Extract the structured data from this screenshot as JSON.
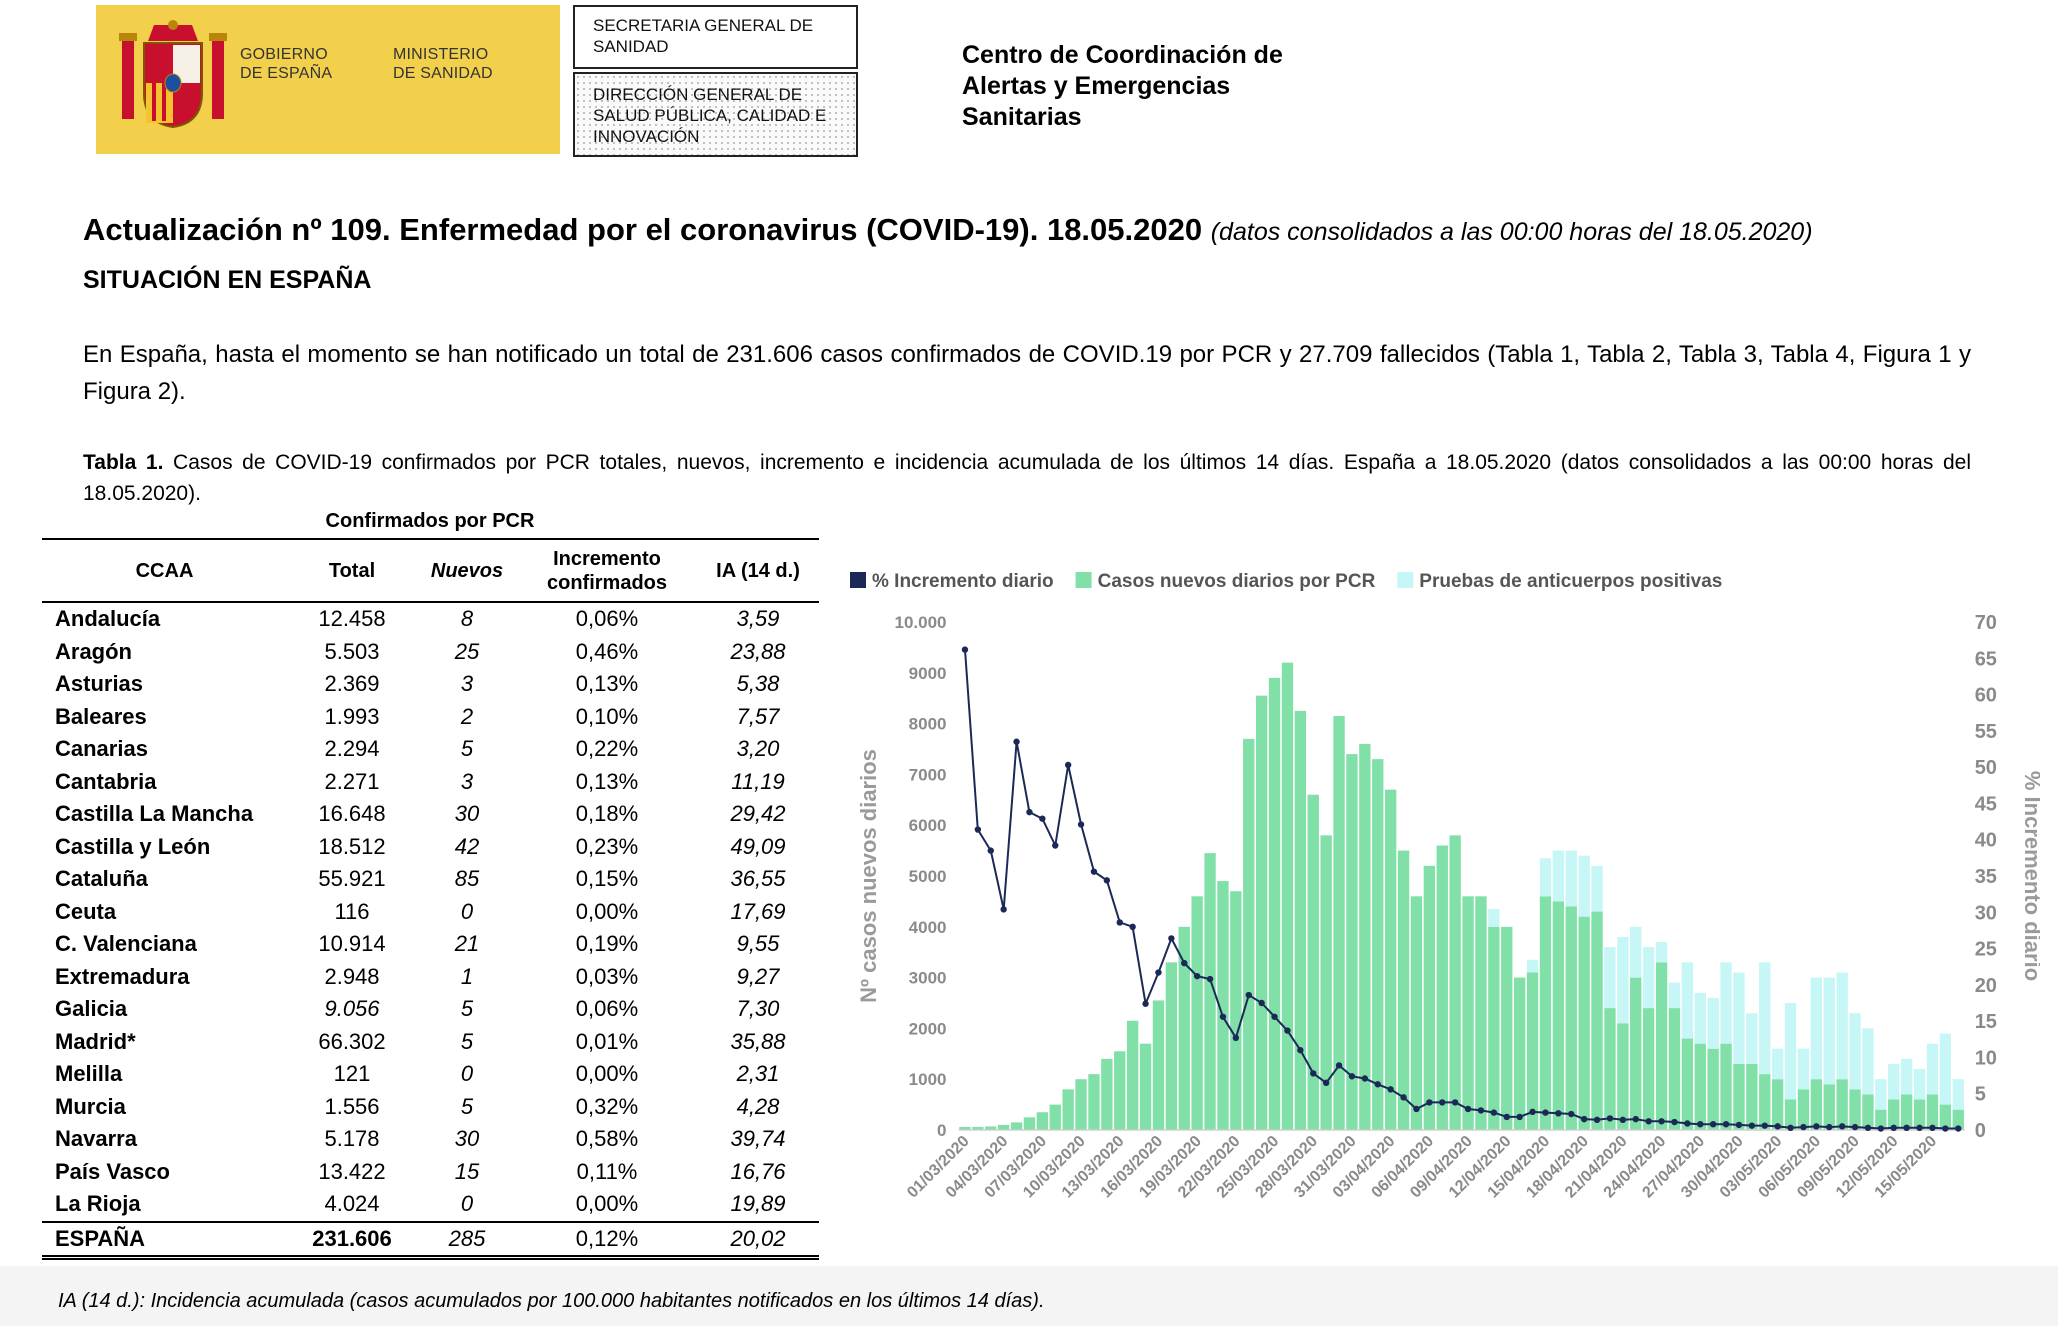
{
  "header": {
    "logo_left": "GOBIERNO DE ESPAÑA",
    "logo_right": "MINISTERIO DE SANIDAD",
    "box_top": "SECRETARIA GENERAL DE SANIDAD",
    "box_bottom": "DIRECCIÓN GENERAL DE SALUD PÚBLICA, CALIDAD E INNOVACIÓN",
    "center": "Centro de Coordinación de Alertas y Emergencias Sanitarias"
  },
  "title": {
    "main": "Actualización nº 109. Enfermedad por el coronavirus (COVID-19). 18.05.2020",
    "note": "(datos consolidados a las 00:00 horas del 18.05.2020)"
  },
  "section": "SITUACIÓN EN ESPAÑA",
  "paragraph": "En España, hasta el momento se han notificado un total de 231.606 casos confirmados de COVID.19 por PCR y 27.709 fallecidos (Tabla 1, Tabla 2, Tabla 3, Tabla 4, Figura 1 y Figura 2).",
  "table": {
    "caption_label": "Tabla 1.",
    "caption": "Casos de COVID-19 confirmados por PCR totales, nuevos, incremento e incidencia acumulada de los últimos 14 días. España a 18.05.2020 (datos consolidados a las 00:00 horas del 18.05.2020).",
    "group_header": "Confirmados por PCR",
    "header": [
      "CCAA",
      "Total",
      "Nuevos",
      "Incremento confirmados",
      "IA (14 d.)"
    ],
    "rows": [
      [
        "Andalucía",
        "12.458",
        "8",
        "0,06%",
        "3,59"
      ],
      [
        "Aragón",
        "5.503",
        "25",
        "0,46%",
        "23,88"
      ],
      [
        "Asturias",
        "2.369",
        "3",
        "0,13%",
        "5,38"
      ],
      [
        "Baleares",
        "1.993",
        "2",
        "0,10%",
        "7,57"
      ],
      [
        "Canarias",
        "2.294",
        "5",
        "0,22%",
        "3,20"
      ],
      [
        "Cantabria",
        "2.271",
        "3",
        "0,13%",
        "11,19"
      ],
      [
        "Castilla La Mancha",
        "16.648",
        "30",
        "0,18%",
        "29,42"
      ],
      [
        "Castilla y León",
        "18.512",
        "42",
        "0,23%",
        "49,09"
      ],
      [
        "Cataluña",
        "55.921",
        "85",
        "0,15%",
        "36,55"
      ],
      [
        "Ceuta",
        "116",
        "0",
        "0,00%",
        "17,69"
      ],
      [
        "C. Valenciana",
        "10.914",
        "21",
        "0,19%",
        "9,55"
      ],
      [
        "Extremadura",
        "2.948",
        "1",
        "0,03%",
        "9,27"
      ],
      [
        "Galicia",
        "9.056",
        "5",
        "0,06%",
        "7,30"
      ],
      [
        "Madrid*",
        "66.302",
        "5",
        "0,01%",
        "35,88"
      ],
      [
        "Melilla",
        "121",
        "0",
        "0,00%",
        "2,31"
      ],
      [
        "Murcia",
        "1.556",
        "5",
        "0,32%",
        "4,28"
      ],
      [
        "Navarra",
        "5.178",
        "30",
        "0,58%",
        "39,74"
      ],
      [
        "País Vasco",
        "13.422",
        "15",
        "0,11%",
        "16,76"
      ],
      [
        "La Rioja",
        "4.024",
        "0",
        "0,00%",
        "19,89"
      ]
    ],
    "total": [
      "ESPAÑA",
      "231.606",
      "285",
      "0,12%",
      "20,02"
    ]
  },
  "chart_data": {
    "type": "bar",
    "stacked": true,
    "ylabel": "Nº casos nuevos diarios",
    "y2label": "% Incremento diario",
    "categories": [
      "01/03/2020",
      null,
      null,
      "04/03/2020",
      null,
      null,
      "07/03/2020",
      null,
      null,
      "10/03/2020",
      null,
      null,
      "13/03/2020",
      null,
      null,
      "16/03/2020",
      null,
      null,
      "19/03/2020",
      null,
      null,
      "22/03/2020",
      null,
      null,
      "25/03/2020",
      null,
      null,
      "28/03/2020",
      null,
      null,
      "31/03/2020",
      null,
      null,
      "03/04/2020",
      null,
      null,
      "06/04/2020",
      null,
      null,
      "09/04/2020",
      null,
      null,
      "12/04/2020",
      null,
      null,
      "15/04/2020",
      null,
      null,
      "18/04/2020",
      null,
      null,
      "21/04/2020",
      null,
      null,
      "24/04/2020",
      null,
      null,
      "27/04/2020",
      null,
      null,
      "30/04/2020",
      null,
      null,
      "03/05/2020",
      null,
      null,
      "06/05/2020",
      null,
      null,
      "09/05/2020",
      null,
      null,
      "12/05/2020",
      null,
      null,
      "15/05/2020",
      null,
      null
    ],
    "series": [
      {
        "name": "% Incremento diario",
        "color": "#1c2957",
        "type": "line",
        "axis": "y2",
        "values": [
          66.2,
          41.4,
          38.5,
          30.4,
          53.5,
          43.8,
          42.9,
          39.2,
          50.3,
          42.1,
          35.6,
          34.4,
          28.6,
          28.0,
          17.4,
          21.7,
          26.4,
          23.0,
          21.2,
          20.8,
          15.6,
          12.7,
          18.6,
          17.5,
          15.6,
          13.7,
          11.0,
          7.8,
          6.5,
          8.9,
          7.4,
          7.1,
          6.3,
          5.6,
          4.5,
          2.9,
          3.8,
          3.8,
          3.8,
          2.9,
          2.7,
          2.4,
          1.8,
          1.8,
          2.5,
          2.4,
          2.3,
          2.2,
          1.5,
          1.4,
          1.6,
          1.4,
          1.5,
          1.2,
          1.2,
          1.1,
          0.9,
          0.8,
          0.8,
          0.8,
          0.7,
          0.6,
          0.6,
          0.5,
          0.3,
          0.4,
          0.5,
          0.4,
          0.5,
          0.4,
          0.3,
          0.2,
          0.3,
          0.3,
          0.3,
          0.3,
          0.2,
          0.2
        ]
      },
      {
        "name": "Casos nuevos diarios por PCR",
        "color": "#80e0a8",
        "values": [
          60,
          60,
          70,
          100,
          150,
          250,
          350,
          500,
          800,
          1000,
          1100,
          1400,
          1550,
          2150,
          1700,
          2550,
          3300,
          4000,
          4600,
          5450,
          4900,
          4700,
          7700,
          8550,
          8900,
          9200,
          8250,
          6600,
          5800,
          8150,
          7400,
          7600,
          7300,
          6700,
          5500,
          4600,
          5200,
          5600,
          5800,
          4600,
          4600,
          4000,
          4000,
          3000,
          3100,
          4600,
          4500,
          4400,
          4200,
          4300,
          2400,
          2100,
          3000,
          2400,
          3300,
          2400,
          1800,
          1700,
          1600,
          1700,
          1300,
          1300,
          1100,
          1000,
          600,
          800,
          1000,
          900,
          1000,
          800,
          700,
          400,
          600,
          700,
          600,
          700,
          500,
          400
        ]
      },
      {
        "name": "Pruebas de anticuerpos positivas",
        "color": "#c6f6f5",
        "values": [
          0,
          0,
          0,
          0,
          0,
          0,
          0,
          0,
          0,
          0,
          0,
          0,
          0,
          0,
          0,
          0,
          0,
          0,
          0,
          0,
          0,
          0,
          0,
          0,
          0,
          0,
          0,
          0,
          0,
          0,
          0,
          0,
          0,
          0,
          0,
          0,
          0,
          0,
          0,
          0,
          0,
          350,
          0,
          0,
          250,
          750,
          1000,
          1100,
          1200,
          900,
          1200,
          1700,
          1000,
          1200,
          400,
          500,
          1500,
          1000,
          1000,
          1600,
          1800,
          1000,
          2200,
          600,
          1900,
          800,
          2000,
          2100,
          2100,
          1500,
          1300,
          600,
          700,
          700,
          600,
          1000,
          1400,
          600
        ]
      }
    ],
    "ylim": [
      0,
      10000
    ],
    "yticks": [
      0,
      1000,
      2000,
      3000,
      4000,
      5000,
      6000,
      7000,
      8000,
      9000,
      {
        "value": 10000,
        "label": "10.000"
      }
    ],
    "y2lim": [
      0,
      70
    ],
    "y2ticks": [
      0,
      5,
      10,
      15,
      20,
      25,
      30,
      35,
      40,
      45,
      50,
      55,
      60,
      65,
      70
    ],
    "legend": "top",
    "grid": false
  },
  "footnote": "IA (14 d.): Incidencia acumulada (casos acumulados por 100.000 habitantes notificados en los últimos 14 días)."
}
